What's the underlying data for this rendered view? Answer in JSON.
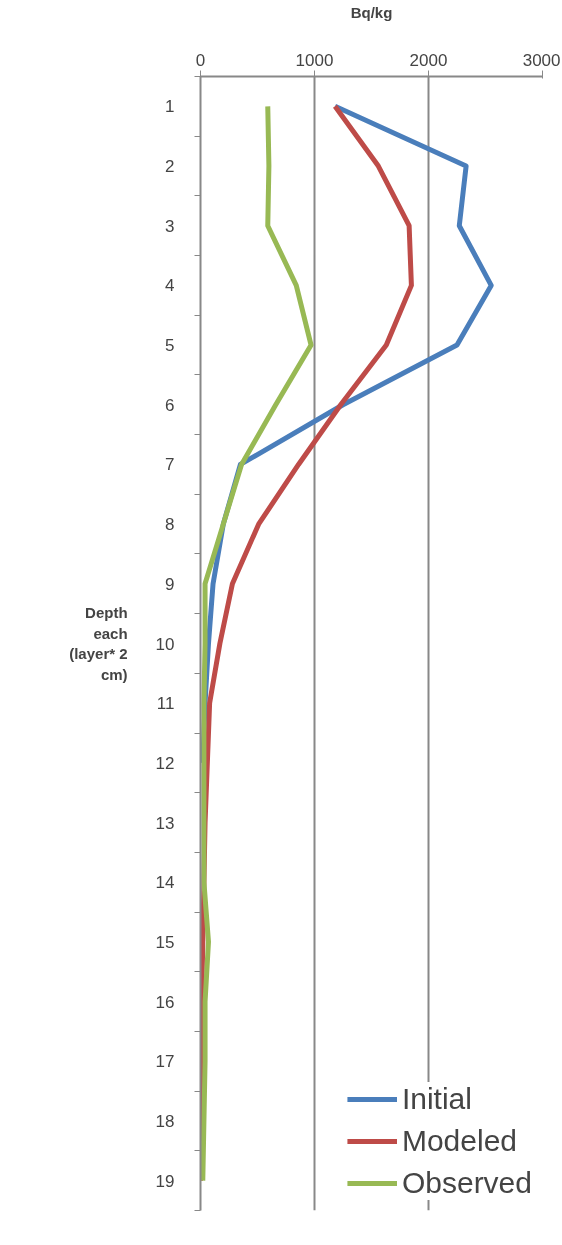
{
  "chart_data": {
    "type": "line",
    "title": "Bq/kg",
    "ylabel": "Depth each (layer* 2 cm)",
    "categories": [
      "1",
      "2",
      "3",
      "4",
      "5",
      "6",
      "7",
      "8",
      "9",
      "10",
      "11",
      "12",
      "13",
      "14",
      "15",
      "16",
      "17",
      "18",
      "19"
    ],
    "orientation": "horizontal",
    "xlim": [
      0,
      3000
    ],
    "xticks": [
      0,
      1000,
      2000,
      3000
    ],
    "grid": "x",
    "legend": "bottom right",
    "line_style": "solid",
    "marker": "none",
    "series": [
      {
        "name": "Initial",
        "color": "#4a7ebb",
        "values": [
          1180,
          2330,
          2270,
          2550,
          2250,
          1250,
          350,
          200,
          110,
          70,
          40,
          20,
          null,
          null,
          null,
          null,
          null,
          null,
          null
        ]
      },
      {
        "name": "Modeled",
        "color": "#be4b48",
        "values": [
          1180,
          1560,
          1830,
          1850,
          1630,
          1230,
          860,
          510,
          280,
          170,
          80,
          60,
          40,
          30,
          20,
          10,
          0,
          0,
          0
        ]
      },
      {
        "name": "Observed",
        "color": "#98b954",
        "values": [
          590,
          600,
          590,
          840,
          970,
          660,
          360,
          200,
          40,
          40,
          30,
          30,
          30,
          30,
          70,
          40,
          40,
          30,
          20
        ]
      }
    ]
  }
}
